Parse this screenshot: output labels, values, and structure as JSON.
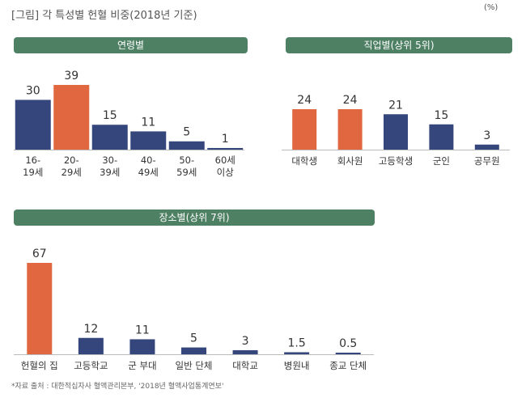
{
  "header": {
    "title": "[그림] 각 특성별 헌혈 비중(2018년 기준)",
    "unit": "(%)"
  },
  "footnote": "*자료 출처 : 대한적십자사 혈액관리본부, '2018년 혈액사업통계연보'",
  "colors": {
    "highlight": "#e0673f",
    "normal": "#35467c",
    "pill": "#4e8064"
  },
  "chart_data": [
    {
      "type": "bar",
      "title": "연령별",
      "categories": [
        "16-\n19세",
        "20-\n29세",
        "30-\n39세",
        "40-\n49세",
        "50-\n59세",
        "60세\n이상"
      ],
      "values": [
        30,
        39,
        15,
        11,
        5,
        1
      ],
      "value_labels": [
        "30",
        "39",
        "15",
        "11",
        "5",
        "1"
      ],
      "highlight": [
        1
      ],
      "ylim": [
        0,
        39
      ]
    },
    {
      "type": "bar",
      "title": "직업별(상위 5위)",
      "categories": [
        "대학생",
        "회사원",
        "고등학생",
        "군인",
        "공무원"
      ],
      "values": [
        24,
        24,
        21,
        15,
        3
      ],
      "value_labels": [
        "24",
        "24",
        "21",
        "15",
        "3"
      ],
      "highlight": [
        0,
        1
      ],
      "ylim": [
        0,
        24
      ]
    },
    {
      "type": "bar",
      "title": "장소별(상위 7위)",
      "categories": [
        "헌혈의 집",
        "고등학교",
        "군 부대",
        "일반 단체",
        "대학교",
        "병원내",
        "종교 단체"
      ],
      "values": [
        67,
        12,
        11,
        5,
        3,
        1.5,
        0.5
      ],
      "value_labels": [
        "67",
        "12",
        "11",
        "5",
        "3",
        "1.5",
        "0.5"
      ],
      "highlight": [
        0
      ],
      "ylim": [
        0,
        67
      ]
    }
  ]
}
